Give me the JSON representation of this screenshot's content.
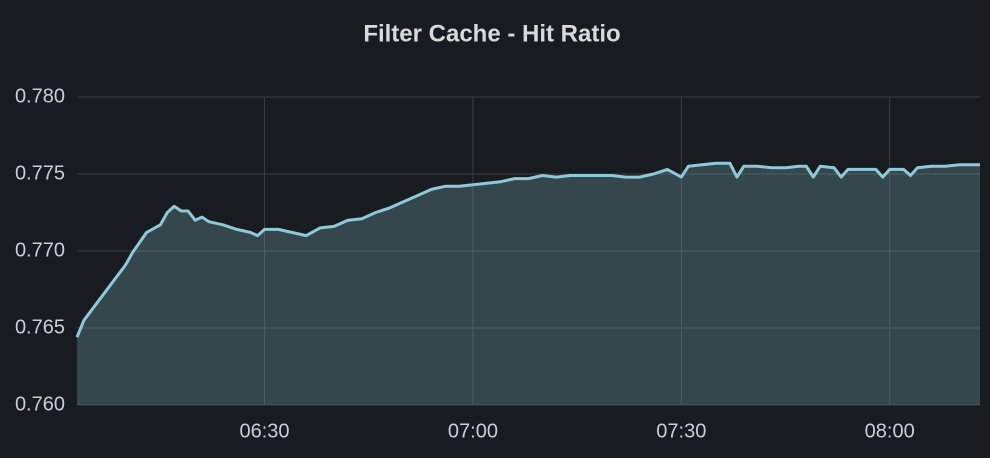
{
  "chart_data": {
    "type": "line",
    "title": "Filter Cache - Hit Ratio",
    "x": [
      "06:03",
      "06:04",
      "06:06",
      "06:08",
      "06:10",
      "06:11",
      "06:13",
      "06:15",
      "06:16",
      "06:17",
      "06:18",
      "06:19",
      "06:20",
      "06:21",
      "06:22",
      "06:24",
      "06:26",
      "06:28",
      "06:29",
      "06:30",
      "06:32",
      "06:34",
      "06:36",
      "06:38",
      "06:40",
      "06:42",
      "06:44",
      "06:46",
      "06:48",
      "06:50",
      "06:52",
      "06:54",
      "06:56",
      "06:58",
      "07:00",
      "07:02",
      "07:04",
      "07:06",
      "07:08",
      "07:10",
      "07:12",
      "07:14",
      "07:16",
      "07:18",
      "07:20",
      "07:22",
      "07:24",
      "07:26",
      "07:28",
      "07:30",
      "07:31",
      "07:33",
      "07:35",
      "07:37",
      "07:38",
      "07:39",
      "07:41",
      "07:43",
      "07:45",
      "07:47",
      "07:48",
      "07:49",
      "07:50",
      "07:52",
      "07:53",
      "07:54",
      "07:56",
      "07:58",
      "07:59",
      "08:00",
      "08:02",
      "08:03",
      "08:04",
      "08:06",
      "08:08",
      "08:10",
      "08:13"
    ],
    "series": [
      {
        "color": "#8fc8d8",
        "values": [
          0.7644,
          0.7655,
          0.7667,
          0.7679,
          0.7691,
          0.7699,
          0.7712,
          0.7717,
          0.7725,
          0.7729,
          0.7726,
          0.7726,
          0.772,
          0.7722,
          0.7719,
          0.7717,
          0.7714,
          0.7712,
          0.771,
          0.7714,
          0.7714,
          0.7712,
          0.771,
          0.7715,
          0.7716,
          0.772,
          0.7721,
          0.7725,
          0.7728,
          0.7732,
          0.7736,
          0.774,
          0.7742,
          0.7742,
          0.7743,
          0.7744,
          0.7745,
          0.7747,
          0.7747,
          0.7749,
          0.7748,
          0.7749,
          0.7749,
          0.7749,
          0.7749,
          0.7748,
          0.7748,
          0.775,
          0.7753,
          0.7748,
          0.7755,
          0.7756,
          0.7757,
          0.7757,
          0.7748,
          0.7755,
          0.7755,
          0.7754,
          0.7754,
          0.7755,
          0.7755,
          0.7748,
          0.7755,
          0.7754,
          0.7748,
          0.7753,
          0.7753,
          0.7753,
          0.7748,
          0.7753,
          0.7753,
          0.7749,
          0.7754,
          0.7755,
          0.7755,
          0.7756,
          0.7756
        ]
      }
    ],
    "xlim": [
      "06:03",
      "08:13"
    ],
    "xticks": [
      "06:30",
      "07:00",
      "07:30",
      "08:00"
    ],
    "ylim": [
      0.76,
      0.78
    ],
    "yticks": [
      {
        "value": 0.76,
        "label": "0.760"
      },
      0.765,
      {
        "value": 0.77,
        "label": "0.770"
      },
      0.775,
      {
        "value": 0.78,
        "label": "0.780"
      }
    ],
    "grid": true
  }
}
